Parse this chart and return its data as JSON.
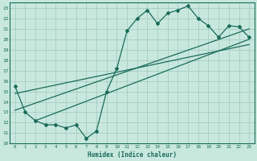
{
  "xlabel": "Humidex (Indice chaleur)",
  "xlim": [
    -0.5,
    23.5
  ],
  "ylim": [
    10,
    23.5
  ],
  "xticks": [
    0,
    1,
    2,
    3,
    4,
    5,
    6,
    7,
    8,
    9,
    10,
    11,
    12,
    13,
    14,
    15,
    16,
    17,
    18,
    19,
    20,
    21,
    22,
    23
  ],
  "yticks": [
    10,
    11,
    12,
    13,
    14,
    15,
    16,
    17,
    18,
    19,
    20,
    21,
    22,
    23
  ],
  "bg_color": "#c8e8de",
  "line_color": "#1a6b5a",
  "grid_color": "#a0c8bb",
  "diag_line1_x": [
    2,
    23
  ],
  "diag_line1_y": [
    12.2,
    20.0
  ],
  "diag_line2_x": [
    0,
    23
  ],
  "diag_line2_y": [
    14.8,
    19.5
  ],
  "diag_line3_x": [
    0,
    23
  ],
  "diag_line3_y": [
    13.2,
    21.0
  ],
  "marker_x": [
    0,
    1,
    2,
    3,
    4,
    5,
    6,
    7,
    8,
    9,
    10,
    11,
    12,
    13,
    14,
    15,
    16,
    17,
    18,
    19,
    20,
    21,
    22,
    23
  ],
  "marker_y": [
    15.5,
    13.0,
    12.2,
    11.8,
    11.8,
    11.5,
    11.8,
    10.5,
    11.2,
    15.0,
    17.2,
    20.8,
    22.0,
    22.8,
    21.5,
    22.5,
    22.8,
    23.2,
    22.0,
    21.3,
    20.2,
    21.3,
    21.2,
    20.2
  ]
}
